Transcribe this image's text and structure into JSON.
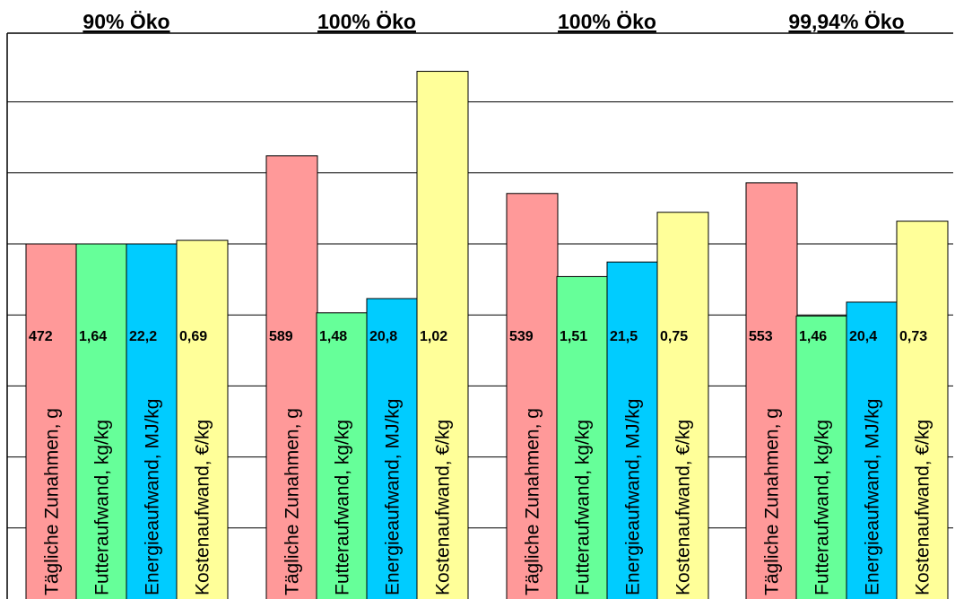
{
  "chart_data": {
    "type": "bar",
    "groups": [
      "90% Öko",
      "100% Öko",
      "100% Öko",
      "99,94% Öko"
    ],
    "categories": [
      "Tägliche Zunahmen, g",
      "Futteraufwand, kg/kg",
      "Energieaufwand, MJ/kg",
      "Kostenaufwand, €/kg"
    ],
    "series": [
      {
        "values": [
          472,
          589,
          539,
          553
        ],
        "labels": [
          "472",
          "589",
          "539",
          "553"
        ],
        "index": [
          100,
          124.8,
          114.2,
          117.2
        ]
      },
      {
        "values": [
          1.64,
          1.48,
          1.51,
          1.46
        ],
        "labels": [
          "1,64",
          "1,48",
          "1,51",
          "1,46"
        ],
        "index": [
          100,
          80.6,
          90.8,
          79.7
        ]
      },
      {
        "values": [
          22.2,
          20.8,
          21.5,
          20.4
        ],
        "labels": [
          "22,2",
          "20,8",
          "21,5",
          "20,4"
        ],
        "index": [
          100,
          84.6,
          94.9,
          83.6
        ]
      },
      {
        "values": [
          0.69,
          1.02,
          0.75,
          0.73
        ],
        "labels": [
          "0,69",
          "1,02",
          "0,75",
          "0,73"
        ],
        "index": [
          101,
          148.6,
          108.9,
          106.4
        ]
      }
    ],
    "colors": [
      "#ff9999",
      "#66ff99",
      "#00ccff",
      "#ffff99"
    ],
    "ylim": [
      0,
      150
    ],
    "grid": true,
    "legend": "none"
  }
}
